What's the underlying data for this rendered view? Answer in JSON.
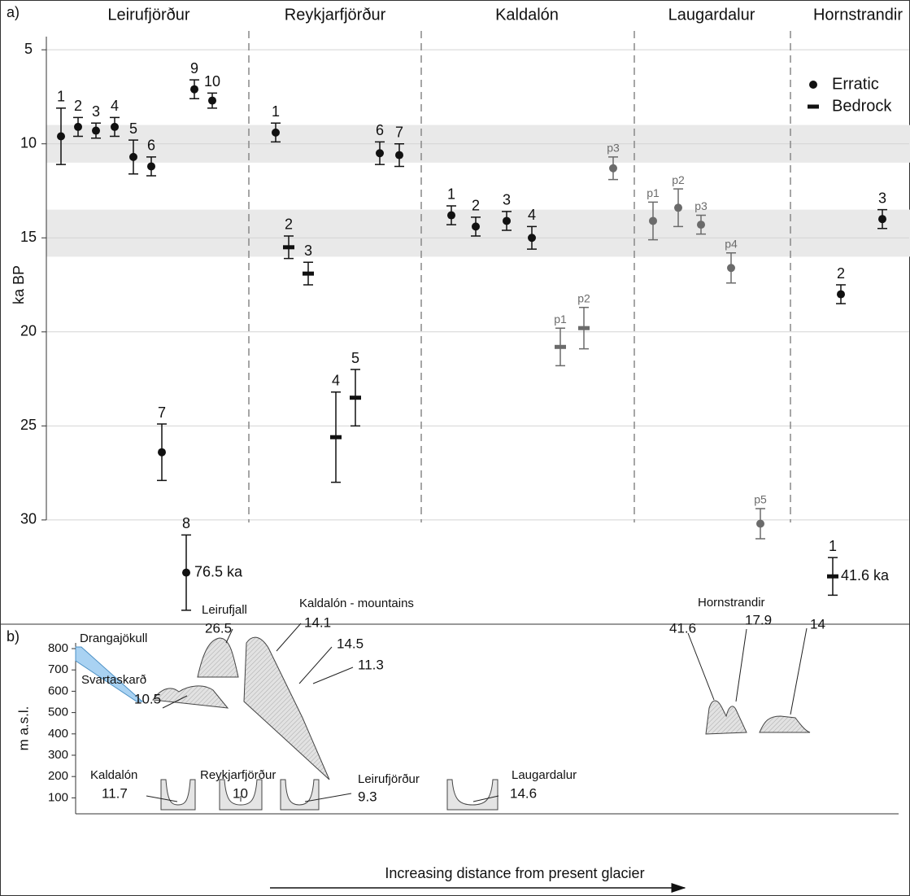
{
  "chart_data": {
    "type": "scatter",
    "panel_label": "a)",
    "y_label": "ka BP",
    "ylim": [
      4.3,
      35.5
    ],
    "y_inverted": true,
    "yticks": [
      5,
      10,
      15,
      20,
      25,
      30
    ],
    "grid": true,
    "bands": [
      [
        9,
        11
      ],
      [
        13.5,
        16
      ]
    ],
    "legend": {
      "position": "top-right",
      "entries": [
        {
          "name": "Erratic",
          "marker": "circle"
        },
        {
          "name": "Bedrock",
          "marker": "dash"
        }
      ]
    },
    "groups": [
      {
        "name": "Leirufjörður",
        "points": [
          {
            "label": "1",
            "value": 9.6,
            "error": 1.5,
            "marker": "circle",
            "color": "#111111"
          },
          {
            "label": "2",
            "value": 9.1,
            "error": 0.5,
            "marker": "circle",
            "color": "#111111"
          },
          {
            "label": "3",
            "value": 9.3,
            "error": 0.4,
            "marker": "circle",
            "color": "#111111"
          },
          {
            "label": "4",
            "value": 9.1,
            "error": 0.5,
            "marker": "circle",
            "color": "#111111"
          },
          {
            "label": "5",
            "value": 10.7,
            "error": 0.9,
            "marker": "circle",
            "color": "#111111"
          },
          {
            "label": "6",
            "value": 11.2,
            "error": 0.5,
            "marker": "circle",
            "color": "#111111"
          },
          {
            "label": "7",
            "value": 26.4,
            "error": 1.5,
            "marker": "circle",
            "color": "#111111"
          },
          {
            "label": "8",
            "value": 32.8,
            "error": 2,
            "marker": "circle",
            "color": "#111111",
            "note": "76.5 ka"
          },
          {
            "label": "9",
            "value": 7.1,
            "error": 0.5,
            "marker": "circle",
            "color": "#111111"
          },
          {
            "label": "10",
            "value": 7.7,
            "error": 0.4,
            "marker": "circle",
            "color": "#111111"
          }
        ]
      },
      {
        "name": "Reykjarfjörður",
        "points": [
          {
            "label": "1",
            "value": 9.4,
            "error": 0.5,
            "marker": "circle",
            "color": "#111111"
          },
          {
            "label": "2",
            "value": 15.5,
            "error": 0.6,
            "marker": "dash",
            "color": "#111111"
          },
          {
            "label": "3",
            "value": 16.9,
            "error": 0.6,
            "marker": "dash",
            "color": "#111111"
          },
          {
            "label": "4",
            "value": 25.6,
            "error": 2.4,
            "marker": "dash",
            "color": "#111111"
          },
          {
            "label": "5",
            "value": 23.5,
            "error": 1.5,
            "marker": "dash",
            "color": "#111111"
          },
          {
            "label": "6",
            "value": 10.5,
            "error": 0.6,
            "marker": "circle",
            "color": "#111111"
          },
          {
            "label": "7",
            "value": 10.6,
            "error": 0.6,
            "marker": "circle",
            "color": "#111111"
          }
        ]
      },
      {
        "name": "Kaldalón",
        "points": [
          {
            "label": "1",
            "value": 13.8,
            "error": 0.5,
            "marker": "circle",
            "color": "#111111"
          },
          {
            "label": "2",
            "value": 14.4,
            "error": 0.5,
            "marker": "circle",
            "color": "#111111"
          },
          {
            "label": "3",
            "value": 14.1,
            "error": 0.5,
            "marker": "circle",
            "color": "#111111"
          },
          {
            "label": "4",
            "value": 15,
            "error": 0.6,
            "marker": "circle",
            "color": "#111111"
          },
          {
            "label": "p1",
            "value": 20.8,
            "error": 1,
            "marker": "dash",
            "color": "#6b6b6b"
          },
          {
            "label": "p2",
            "value": 19.8,
            "error": 1.1,
            "marker": "dash",
            "color": "#6b6b6b"
          },
          {
            "label": "p3",
            "value": 11.3,
            "error": 0.6,
            "marker": "circle",
            "color": "#6b6b6b"
          }
        ]
      },
      {
        "name": "Laugardalur",
        "points": [
          {
            "label": "p1",
            "value": 14.1,
            "error": 1,
            "marker": "circle",
            "color": "#6b6b6b"
          },
          {
            "label": "p2",
            "value": 13.4,
            "error": 1,
            "marker": "circle",
            "color": "#6b6b6b"
          },
          {
            "label": "p3",
            "value": 14.3,
            "error": 0.5,
            "marker": "circle",
            "color": "#6b6b6b"
          },
          {
            "label": "p4",
            "value": 16.6,
            "error": 0.8,
            "marker": "circle",
            "color": "#6b6b6b"
          },
          {
            "label": "p5",
            "value": 30.2,
            "error": 0.8,
            "marker": "circle",
            "color": "#6b6b6b"
          }
        ]
      },
      {
        "name": "Hornstrandir",
        "points": [
          {
            "label": "1",
            "value": 33,
            "error": 1,
            "marker": "dash",
            "color": "#111111",
            "note": "41.6 ka"
          },
          {
            "label": "2",
            "value": 18,
            "error": 0.5,
            "marker": "circle",
            "color": "#111111"
          },
          {
            "label": "3",
            "value": 14,
            "error": 0.5,
            "marker": "circle",
            "color": "#111111"
          }
        ]
      }
    ]
  },
  "panel_b": {
    "panel_label": "b)",
    "y_label": "m a.s.l.",
    "yticks": [
      800,
      700,
      600,
      500,
      400,
      300,
      200,
      100
    ],
    "x_label": "Increasing distance from present glacier",
    "labels": [
      "Drangajökull",
      "Leirufjall",
      "26.5",
      "Kaldalón - mountains",
      "14.1",
      "14.5",
      "11.3",
      "Svartaskarð",
      "10.5",
      "Kaldalón",
      "11.7",
      "Reykjarfjörður",
      "10",
      "Leirufjörður",
      "9.3",
      "Laugardalur",
      "14.6",
      "Hornstrandir",
      "41.6",
      "17.9",
      "14"
    ]
  }
}
